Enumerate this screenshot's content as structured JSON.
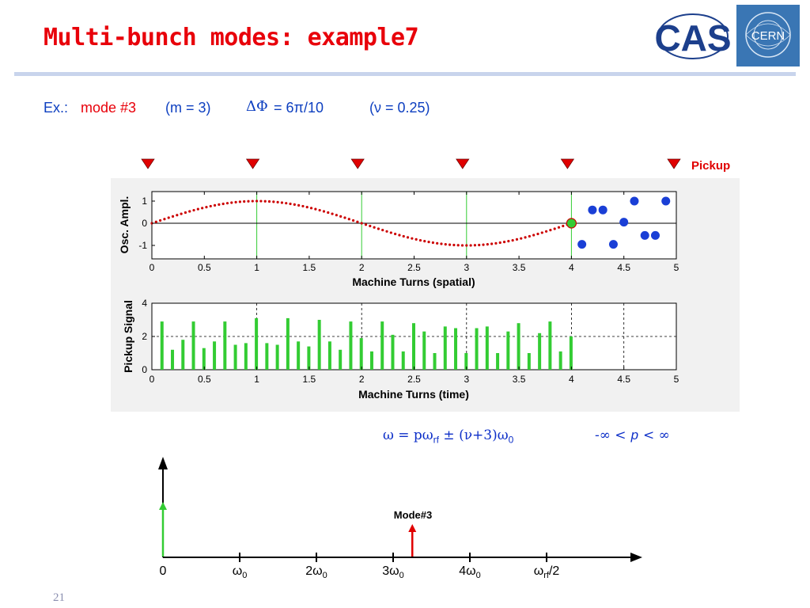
{
  "slide": {
    "title": "Multi-bunch modes: example7",
    "number": "21"
  },
  "logos": {
    "cas_text": "CAS",
    "cern_text": "CERN"
  },
  "example": {
    "prefix": "Ex.:",
    "mode": "mode #3",
    "m": "(m = 3)",
    "dphi_symbol": "ΔΦ",
    "dphi_value": "= 6π/10",
    "nu": "(ν = 0.25)"
  },
  "colors": {
    "title": "#e8000a",
    "text_blue": "#0d3fc0",
    "rule": "#c8d4ec",
    "marker_red": "#e00000",
    "green": "#33cc33",
    "blue_dot": "#1a3fd6"
  },
  "pickup_label": "Pickup",
  "formula": {
    "lhs": "ω = pω",
    "sub_rf": "rf",
    "mid": " ± (ν+3)ω",
    "sub_0": "0",
    "range_left": "-∞ <",
    "range_p": "p",
    "range_right": "< ∞"
  },
  "spectrum": {
    "mode_label": "Mode#3",
    "ticks": [
      {
        "label": "0",
        "sub": ""
      },
      {
        "label": "ω",
        "sub": "0"
      },
      {
        "label": "2ω",
        "sub": "0"
      },
      {
        "label": "3ω",
        "sub": "0"
      },
      {
        "label": "4ω",
        "sub": "0"
      },
      {
        "label": "ω",
        "sub": "rf",
        "suffix": "/2"
      }
    ]
  },
  "chart_data": [
    {
      "type": "scatter",
      "ylabel": "Osc. Ampl.",
      "xlabel": "Machine Turns (spatial)",
      "xlim": [
        0,
        5
      ],
      "ylim": [
        -1.3,
        1.5
      ],
      "xticks": [
        "0",
        "0.5",
        "1",
        "1.5",
        "2",
        "2.5",
        "3",
        "3.5",
        "4",
        "4.5",
        "5"
      ],
      "yticks": [
        "1",
        "0",
        "-1"
      ],
      "grid": false,
      "series": [
        {
          "style": "red dotted sinusoid",
          "function": "sin(2*pi*0.25*x)",
          "x_range": [
            0,
            4
          ]
        },
        {
          "style": "green marker",
          "x": [
            4
          ],
          "y": [
            0
          ]
        },
        {
          "style": "blue bunches",
          "x": [
            4.1,
            4.2,
            4.3,
            4.4,
            4.5,
            4.6,
            4.7,
            4.8,
            4.9
          ],
          "y": [
            -0.95,
            0.6,
            0.6,
            -0.95,
            0.05,
            1.0,
            -0.55,
            -0.55,
            1.0
          ]
        }
      ],
      "vlines": [
        1,
        2,
        3,
        4
      ]
    },
    {
      "type": "bar",
      "ylabel": "Pickup Signal",
      "xlabel": "Machine Turns (time)",
      "xlim": [
        0,
        5
      ],
      "ylim": [
        0,
        4
      ],
      "xticks": [
        "0",
        "0.5",
        "1",
        "1.5",
        "2",
        "2.5",
        "3",
        "3.5",
        "4",
        "4.5",
        "5"
      ],
      "yticks": [
        "4",
        "2",
        "0"
      ],
      "grid": "dashed",
      "x": [
        0.1,
        0.2,
        0.3,
        0.4,
        0.5,
        0.6,
        0.7,
        0.8,
        0.9,
        1.0,
        1.1,
        1.2,
        1.3,
        1.4,
        1.5,
        1.6,
        1.7,
        1.8,
        1.9,
        2.0,
        2.1,
        2.2,
        2.3,
        2.4,
        2.5,
        2.6,
        2.7,
        2.8,
        2.9,
        3.0,
        3.1,
        3.2,
        3.3,
        3.4,
        3.5,
        3.6,
        3.7,
        3.8,
        3.9,
        4.0
      ],
      "values": [
        2.9,
        1.2,
        1.8,
        2.9,
        1.3,
        1.7,
        2.9,
        1.5,
        1.6,
        3.1,
        1.6,
        1.5,
        3.1,
        1.7,
        1.4,
        3.0,
        1.7,
        1.2,
        2.9,
        1.9,
        1.1,
        2.9,
        2.1,
        1.1,
        2.8,
        2.3,
        1.0,
        2.6,
        2.5,
        1.0,
        2.5,
        2.6,
        1.0,
        2.3,
        2.8,
        1.0,
        2.2,
        2.9,
        1.1,
        2.0
      ]
    },
    {
      "type": "bar",
      "xlabel": "",
      "ylabel": "",
      "x": [
        0,
        3.25
      ],
      "values": [
        1.0,
        1.0
      ],
      "colors": [
        "#33cc33",
        "#e00000"
      ]
    }
  ]
}
